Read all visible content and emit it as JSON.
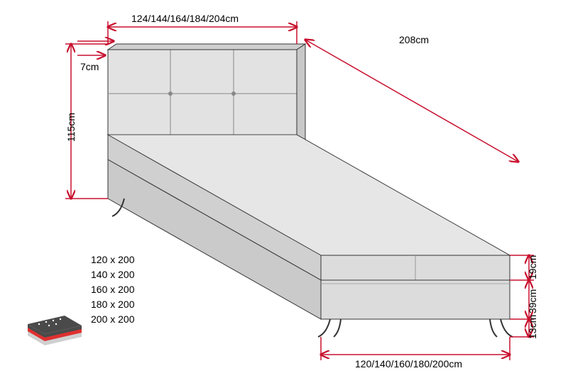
{
  "diagram": {
    "type": "technical-drawing",
    "colors": {
      "dimension_line": "#c8102e",
      "dimension_text": "#000000",
      "bed_outline": "#333333",
      "bed_fill": "#dcdcdc",
      "bed_shadow": "#f2f2f2",
      "headboard_fill": "#e2e2e2",
      "icon_bg": "#4a4a4a",
      "icon_mattress": "#d0d0d0",
      "icon_sheet": "#e03030",
      "size_text": "#000000"
    },
    "font": {
      "label_pt": 14,
      "family": "Arial"
    },
    "dimensions": {
      "top_width_options": "124/144/164/184/204cm",
      "top_depth": "208cm",
      "headboard_thickness": "7cm",
      "headboard_height": "115cm",
      "mattress_height": "19cm",
      "base_height": "39cm",
      "leg_height": "13cm",
      "bottom_width_options": "120/140/160/180/200cm"
    },
    "size_options": [
      "120 x 200",
      "140 x 200",
      "160 x 200",
      "180 x 200",
      "200 x 200"
    ]
  }
}
